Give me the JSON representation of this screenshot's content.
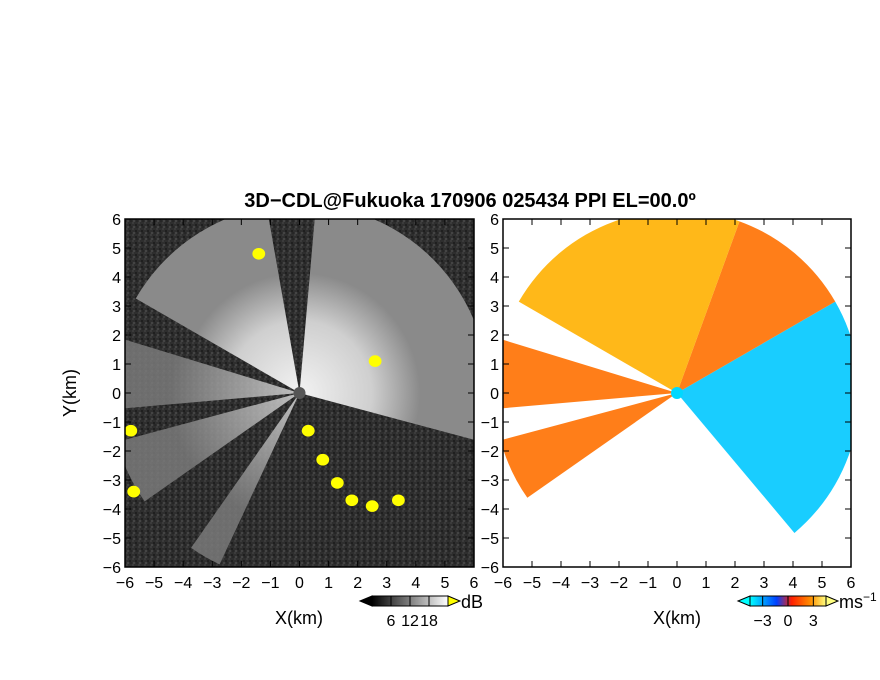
{
  "figure": {
    "title": "3D−CDL@Fukuoka 170906 025434 PPI EL=00.0º"
  },
  "chart_data": [
    {
      "type": "heatmap",
      "panel": "left",
      "field": "signal intensity",
      "xlabel": "X(km)",
      "ylabel": "Y(km)",
      "xlim": [
        -6,
        6
      ],
      "ylim": [
        -6,
        6
      ],
      "xticks": [
        "−6",
        "−5",
        "−4",
        "−3",
        "−2",
        "−1",
        "0",
        "1",
        "2",
        "3",
        "4",
        "5",
        "6"
      ],
      "yticks": [
        "6",
        "5",
        "4",
        "3",
        "2",
        "1",
        "0",
        "−1",
        "−2",
        "−3",
        "−4",
        "−5",
        "−6"
      ],
      "colorbar": {
        "unit": "dB",
        "ticks": [
          "6",
          "12",
          "18"
        ],
        "tick_values": [
          6,
          12,
          18
        ],
        "range": [
          0,
          24
        ],
        "colors": [
          "#000000",
          "#ffffff"
        ],
        "extend_low_color": "#000000",
        "extend_high_color": "#ffff00"
      },
      "radar_origin": [
        0,
        0
      ],
      "sectors": [
        {
          "from_deg": -15,
          "to_deg": 85,
          "level": "bright"
        },
        {
          "from_deg": 100,
          "to_deg": 150,
          "level": "bright"
        },
        {
          "from_deg": 163,
          "to_deg": 185,
          "level": "medium"
        },
        {
          "from_deg": 195,
          "to_deg": 215,
          "level": "medium"
        },
        {
          "from_deg": 235,
          "to_deg": 245,
          "level": "medium"
        }
      ],
      "highlight_color": "#ffff00",
      "highlight_areas": [
        {
          "x": 0.3,
          "y": -1.3
        },
        {
          "x": 0.8,
          "y": -2.3
        },
        {
          "x": 1.3,
          "y": -3.1
        },
        {
          "x": 1.8,
          "y": -3.7
        },
        {
          "x": 2.5,
          "y": -3.9
        },
        {
          "x": 3.4,
          "y": -3.7
        },
        {
          "x": -5.8,
          "y": -1.3
        },
        {
          "x": -5.7,
          "y": -3.4
        },
        {
          "x": 2.6,
          "y": 1.1
        },
        {
          "x": -1.4,
          "y": 4.8
        }
      ]
    },
    {
      "type": "heatmap",
      "panel": "right",
      "field": "radial velocity",
      "xlabel": "X(km)",
      "xlim": [
        -6,
        6
      ],
      "ylim": [
        -6,
        6
      ],
      "xticks": [
        "−6",
        "−5",
        "−4",
        "−3",
        "−2",
        "−1",
        "0",
        "1",
        "2",
        "3",
        "4",
        "5",
        "6"
      ],
      "yticks": [
        "6",
        "5",
        "4",
        "3",
        "2",
        "1",
        "0",
        "−1",
        "−2",
        "−3",
        "−4",
        "−5",
        "−6"
      ],
      "colorbar": {
        "unit": "ms",
        "unit_exponent": "−1",
        "ticks": [
          "−3",
          "0",
          "3"
        ],
        "tick_values": [
          -3,
          0,
          3
        ],
        "range": [
          -4.5,
          4.5
        ],
        "colors": [
          "#00ffff",
          "#0040ff",
          "#ff2000",
          "#ff9000",
          "#ffff80"
        ]
      },
      "radar_origin": [
        0,
        0
      ],
      "velocity_sectors": [
        {
          "from_deg": -50,
          "to_deg": 30,
          "velocity": -3
        },
        {
          "from_deg": 30,
          "to_deg": 70,
          "velocity": 1.5
        },
        {
          "from_deg": 70,
          "to_deg": 150,
          "velocity": 3
        },
        {
          "from_deg": 163,
          "to_deg": 185,
          "velocity": 2
        },
        {
          "from_deg": 195,
          "to_deg": 215,
          "velocity": 1.5
        }
      ]
    }
  ]
}
